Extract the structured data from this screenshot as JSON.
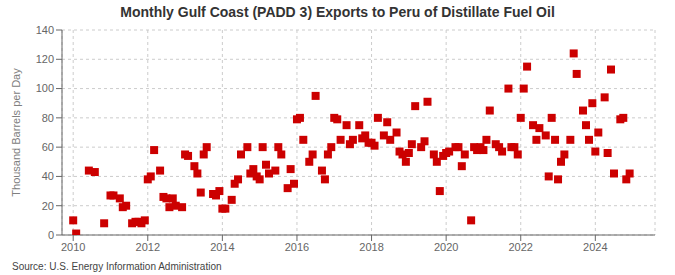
{
  "chart_data": {
    "type": "scatter",
    "title": "Monthly Gulf Coast (PADD 3) Exports to Peru of Distillate Fuel Oil",
    "ylabel": "Thousand Barrels per Day",
    "annotations": [
      "Source: U.S. Energy Information Administration"
    ],
    "color": "#cc0000",
    "marker": "square",
    "grid": true,
    "xlim": [
      2009.7,
      2025.6
    ],
    "xticks": [
      2010,
      2012,
      2014,
      2016,
      2018,
      2020,
      2022,
      2024
    ],
    "ylim": [
      0,
      140
    ],
    "yticks": [
      0,
      20,
      40,
      60,
      80,
      100,
      120,
      140
    ],
    "x": [
      2010.0,
      2010.08,
      2010.42,
      2010.58,
      2010.83,
      2011.0,
      2011.08,
      2011.25,
      2011.33,
      2011.42,
      2011.58,
      2011.67,
      2011.75,
      2011.83,
      2011.92,
      2012.0,
      2012.08,
      2012.17,
      2012.33,
      2012.42,
      2012.5,
      2012.58,
      2012.67,
      2012.75,
      2012.92,
      2013.0,
      2013.08,
      2013.25,
      2013.33,
      2013.42,
      2013.5,
      2013.58,
      2013.75,
      2013.83,
      2013.92,
      2014.0,
      2014.08,
      2014.25,
      2014.33,
      2014.42,
      2014.5,
      2014.67,
      2014.75,
      2014.83,
      2014.92,
      2015.0,
      2015.08,
      2015.17,
      2015.25,
      2015.42,
      2015.5,
      2015.58,
      2015.75,
      2015.83,
      2015.92,
      2016.0,
      2016.08,
      2016.17,
      2016.33,
      2016.42,
      2016.5,
      2016.67,
      2016.75,
      2016.83,
      2016.92,
      2017.0,
      2017.08,
      2017.17,
      2017.33,
      2017.42,
      2017.5,
      2017.67,
      2017.75,
      2017.83,
      2017.92,
      2018.0,
      2018.08,
      2018.17,
      2018.33,
      2018.42,
      2018.5,
      2018.67,
      2018.75,
      2018.83,
      2018.92,
      2019.0,
      2019.08,
      2019.17,
      2019.33,
      2019.42,
      2019.5,
      2019.67,
      2019.75,
      2019.83,
      2019.92,
      2020.0,
      2020.08,
      2020.25,
      2020.33,
      2020.42,
      2020.5,
      2020.67,
      2020.75,
      2020.83,
      2020.92,
      2021.0,
      2021.08,
      2021.17,
      2021.33,
      2021.42,
      2021.5,
      2021.67,
      2021.75,
      2021.83,
      2021.92,
      2022.0,
      2022.08,
      2022.17,
      2022.33,
      2022.42,
      2022.5,
      2022.67,
      2022.75,
      2022.83,
      2022.92,
      2023.0,
      2023.08,
      2023.17,
      2023.33,
      2023.42,
      2023.5,
      2023.67,
      2023.75,
      2023.83,
      2023.92,
      2024.0,
      2024.08,
      2024.25,
      2024.33,
      2024.42,
      2024.5,
      2024.67,
      2024.75,
      2024.83,
      2024.92
    ],
    "values": [
      10,
      1,
      44,
      43,
      8,
      27,
      27,
      25,
      19,
      20,
      8,
      9,
      9,
      8,
      10,
      38,
      40,
      58,
      44,
      26,
      25,
      19,
      25,
      20,
      19,
      55,
      54,
      47,
      42,
      29,
      55,
      60,
      28,
      27,
      30,
      18,
      18,
      24,
      35,
      38,
      55,
      60,
      42,
      45,
      40,
      38,
      60,
      48,
      42,
      44,
      60,
      55,
      32,
      45,
      35,
      79,
      80,
      65,
      50,
      55,
      95,
      44,
      38,
      55,
      60,
      80,
      79,
      65,
      75,
      62,
      65,
      75,
      66,
      68,
      63,
      63,
      61,
      80,
      68,
      77,
      65,
      70,
      57,
      55,
      50,
      56,
      62,
      88,
      60,
      64,
      91,
      55,
      50,
      30,
      54,
      56,
      57,
      60,
      60,
      47,
      55,
      10,
      60,
      58,
      60,
      58,
      65,
      85,
      62,
      60,
      57,
      100,
      60,
      60,
      55,
      80,
      100,
      115,
      75,
      65,
      73,
      68,
      40,
      80,
      65,
      38,
      50,
      55,
      65,
      124,
      110,
      85,
      75,
      65,
      90,
      57,
      70,
      94,
      56,
      113,
      42,
      79,
      80,
      38,
      42
    ]
  }
}
